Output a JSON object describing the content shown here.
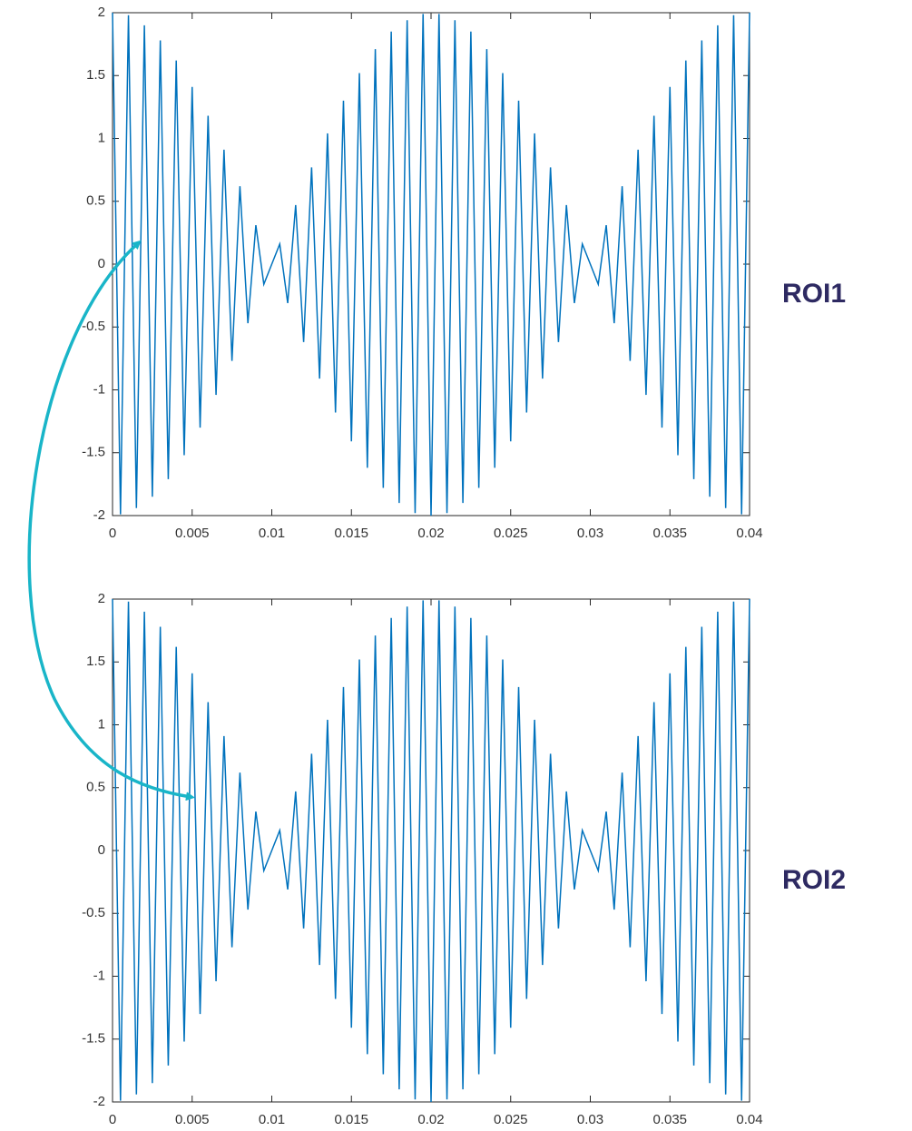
{
  "chart_data": [
    {
      "type": "line",
      "annotation": "ROI1",
      "x": [
        0,
        0.0005,
        0.001,
        0.0015,
        0.002,
        0.0025,
        0.003,
        0.0035,
        0.004,
        0.0045,
        0.005,
        0.0055,
        0.006,
        0.0065,
        0.007,
        0.0075,
        0.008,
        0.0085,
        0.009,
        0.0095,
        0.01,
        0.0105,
        0.011,
        0.0115,
        0.012,
        0.0125,
        0.013,
        0.0135,
        0.014,
        0.0145,
        0.015,
        0.0155,
        0.016,
        0.0165,
        0.017,
        0.0175,
        0.018,
        0.0185,
        0.019,
        0.0195,
        0.02,
        0.0205,
        0.021,
        0.0215,
        0.022,
        0.0225,
        0.023,
        0.0235,
        0.024,
        0.0245,
        0.025,
        0.0255,
        0.026,
        0.0265,
        0.027,
        0.0275,
        0.028,
        0.0285,
        0.029,
        0.0295,
        0.03,
        0.0305,
        0.031,
        0.0315,
        0.032,
        0.0325,
        0.033,
        0.0335,
        0.034,
        0.0345,
        0.035,
        0.0355,
        0.036,
        0.0365,
        0.037,
        0.0375,
        0.038,
        0.0385,
        0.039,
        0.0395,
        0.04
      ],
      "series": [
        {
          "color": "#0072bd",
          "values": [
            2,
            -1.99,
            1.98,
            -1.94,
            1.9,
            -1.85,
            1.78,
            -1.71,
            1.62,
            -1.52,
            1.41,
            -1.3,
            1.18,
            -1.04,
            0.91,
            -0.77,
            0.62,
            -0.47,
            0.31,
            -0.16,
            0,
            0.16,
            -0.31,
            0.47,
            -0.62,
            0.77,
            -0.91,
            1.04,
            -1.18,
            1.3,
            -1.41,
            1.52,
            -1.62,
            1.71,
            -1.78,
            1.85,
            -1.9,
            1.94,
            -1.98,
            1.99,
            -2,
            1.99,
            -1.98,
            1.94,
            -1.9,
            1.85,
            -1.78,
            1.71,
            -1.62,
            1.52,
            -1.41,
            1.3,
            -1.18,
            1.04,
            -0.91,
            0.77,
            -0.62,
            0.47,
            -0.31,
            0.16,
            0,
            -0.16,
            0.31,
            -0.47,
            0.62,
            -0.77,
            0.91,
            -1.04,
            1.18,
            -1.3,
            1.41,
            -1.52,
            1.62,
            -1.71,
            1.78,
            -1.85,
            1.9,
            -1.94,
            1.98,
            -1.99,
            2
          ]
        }
      ],
      "xlim": [
        0,
        0.04
      ],
      "xticks": [
        0,
        0.005,
        0.01,
        0.015,
        0.02,
        0.025,
        0.03,
        0.035,
        0.04
      ],
      "ylim": [
        -2,
        2
      ],
      "yticks": [
        -2,
        -1.5,
        -1,
        -0.5,
        0,
        0.5,
        1,
        1.5,
        2
      ]
    },
    {
      "type": "line",
      "annotation": "ROI2",
      "x": [
        0,
        0.0005,
        0.001,
        0.0015,
        0.002,
        0.0025,
        0.003,
        0.0035,
        0.004,
        0.0045,
        0.005,
        0.0055,
        0.006,
        0.0065,
        0.007,
        0.0075,
        0.008,
        0.0085,
        0.009,
        0.0095,
        0.01,
        0.0105,
        0.011,
        0.0115,
        0.012,
        0.0125,
        0.013,
        0.0135,
        0.014,
        0.0145,
        0.015,
        0.0155,
        0.016,
        0.0165,
        0.017,
        0.0175,
        0.018,
        0.0185,
        0.019,
        0.0195,
        0.02,
        0.0205,
        0.021,
        0.0215,
        0.022,
        0.0225,
        0.023,
        0.0235,
        0.024,
        0.0245,
        0.025,
        0.0255,
        0.026,
        0.0265,
        0.027,
        0.0275,
        0.028,
        0.0285,
        0.029,
        0.0295,
        0.03,
        0.0305,
        0.031,
        0.0315,
        0.032,
        0.0325,
        0.033,
        0.0335,
        0.034,
        0.0345,
        0.035,
        0.0355,
        0.036,
        0.0365,
        0.037,
        0.0375,
        0.038,
        0.0385,
        0.039,
        0.0395,
        0.04
      ],
      "series": [
        {
          "color": "#0072bd",
          "values": [
            2,
            -1.99,
            1.98,
            -1.94,
            1.9,
            -1.85,
            1.78,
            -1.71,
            1.62,
            -1.52,
            1.41,
            -1.3,
            1.18,
            -1.04,
            0.91,
            -0.77,
            0.62,
            -0.47,
            0.31,
            -0.16,
            0,
            0.16,
            -0.31,
            0.47,
            -0.62,
            0.77,
            -0.91,
            1.04,
            -1.18,
            1.3,
            -1.41,
            1.52,
            -1.62,
            1.71,
            -1.78,
            1.85,
            -1.9,
            1.94,
            -1.98,
            1.99,
            -2,
            1.99,
            -1.98,
            1.94,
            -1.9,
            1.85,
            -1.78,
            1.71,
            -1.62,
            1.52,
            -1.41,
            1.3,
            -1.18,
            1.04,
            -0.91,
            0.77,
            -0.62,
            0.47,
            -0.31,
            0.16,
            0,
            -0.16,
            0.31,
            -0.47,
            0.62,
            -0.77,
            0.91,
            -1.04,
            1.18,
            -1.3,
            1.41,
            -1.52,
            1.62,
            -1.71,
            1.78,
            -1.85,
            1.9,
            -1.94,
            1.98,
            -1.99,
            2
          ]
        }
      ],
      "xlim": [
        0,
        0.04
      ],
      "xticks": [
        0,
        0.005,
        0.01,
        0.015,
        0.02,
        0.025,
        0.03,
        0.035,
        0.04
      ],
      "ylim": [
        -2,
        2
      ],
      "yticks": [
        -2,
        -1.5,
        -1,
        -0.5,
        0,
        0.5,
        1,
        1.5,
        2
      ]
    }
  ]
}
